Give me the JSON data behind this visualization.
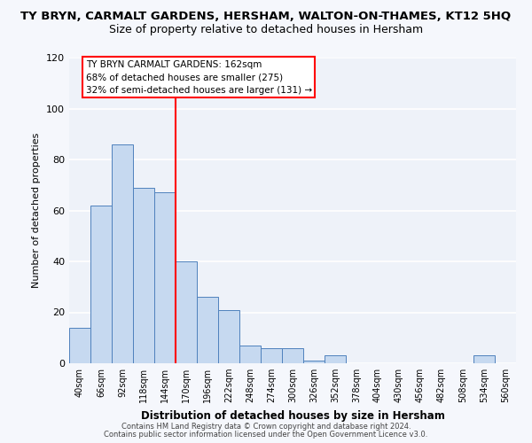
{
  "title": "TY BRYN, CARMALT GARDENS, HERSHAM, WALTON-ON-THAMES, KT12 5HQ",
  "subtitle": "Size of property relative to detached houses in Hersham",
  "xlabel": "Distribution of detached houses by size in Hersham",
  "ylabel": "Number of detached properties",
  "bins": [
    "40sqm",
    "66sqm",
    "92sqm",
    "118sqm",
    "144sqm",
    "170sqm",
    "196sqm",
    "222sqm",
    "248sqm",
    "274sqm",
    "300sqm",
    "326sqm",
    "352sqm",
    "378sqm",
    "404sqm",
    "430sqm",
    "456sqm",
    "482sqm",
    "508sqm",
    "534sqm",
    "560sqm"
  ],
  "values": [
    14,
    62,
    86,
    69,
    67,
    40,
    26,
    21,
    7,
    6,
    6,
    1,
    3,
    0,
    0,
    0,
    0,
    0,
    0,
    3,
    0
  ],
  "bar_color": "#c6d9f0",
  "bar_edge_color": "#4f81bd",
  "vline_color": "red",
  "annotation_line1": "TY BRYN CARMALT GARDENS: 162sqm",
  "annotation_line2": "68% of detached houses are smaller (275)",
  "annotation_line3": "32% of semi-detached houses are larger (131) →",
  "box_edge_color": "red",
  "ylim": [
    0,
    120
  ],
  "yticks": [
    0,
    20,
    40,
    60,
    80,
    100,
    120
  ],
  "bg_color": "#eef2f9",
  "grid_color": "#ffffff",
  "fig_bg_color": "#f5f7fc",
  "footer_line1": "Contains HM Land Registry data © Crown copyright and database right 2024.",
  "footer_line2": "Contains public sector information licensed under the Open Government Licence v3.0.",
  "title_fontsize": 9.5,
  "subtitle_fontsize": 9
}
